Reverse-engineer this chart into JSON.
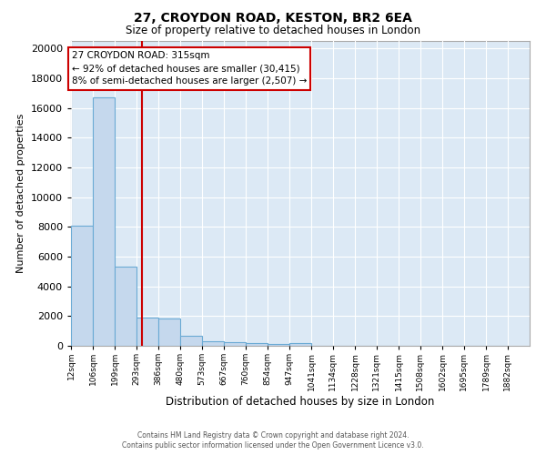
{
  "title1": "27, CROYDON ROAD, KESTON, BR2 6EA",
  "title2": "Size of property relative to detached houses in London",
  "xlabel": "Distribution of detached houses by size in London",
  "ylabel": "Number of detached properties",
  "bar_color": "#c5d8ed",
  "bar_edge_color": "#6aaad4",
  "bin_labels": [
    "12sqm",
    "106sqm",
    "199sqm",
    "293sqm",
    "386sqm",
    "480sqm",
    "573sqm",
    "667sqm",
    "760sqm",
    "854sqm",
    "947sqm",
    "1041sqm",
    "1134sqm",
    "1228sqm",
    "1321sqm",
    "1415sqm",
    "1508sqm",
    "1602sqm",
    "1695sqm",
    "1789sqm",
    "1882sqm"
  ],
  "bar_heights": [
    8050,
    16700,
    5300,
    1900,
    1850,
    650,
    330,
    270,
    175,
    145,
    175,
    0,
    0,
    0,
    0,
    0,
    0,
    0,
    0,
    0,
    0
  ],
  "bin_edges": [
    12,
    106,
    199,
    293,
    386,
    480,
    573,
    667,
    760,
    854,
    947,
    1041,
    1134,
    1228,
    1321,
    1415,
    1508,
    1602,
    1695,
    1789,
    1882
  ],
  "bin_width": 94,
  "red_line_x": 315,
  "annotation_title": "27 CROYDON ROAD: 315sqm",
  "annotation_line1": "← 92% of detached houses are smaller (30,415)",
  "annotation_line2": "8% of semi-detached houses are larger (2,507) →",
  "red_line_color": "#cc0000",
  "ylim": [
    0,
    20500
  ],
  "yticks": [
    0,
    2000,
    4000,
    6000,
    8000,
    10000,
    12000,
    14000,
    16000,
    18000,
    20000
  ],
  "plot_bg_color": "#dce9f5",
  "grid_color": "#ffffff",
  "footnote1": "Contains HM Land Registry data © Crown copyright and database right 2024.",
  "footnote2": "Contains public sector information licensed under the Open Government Licence v3.0."
}
